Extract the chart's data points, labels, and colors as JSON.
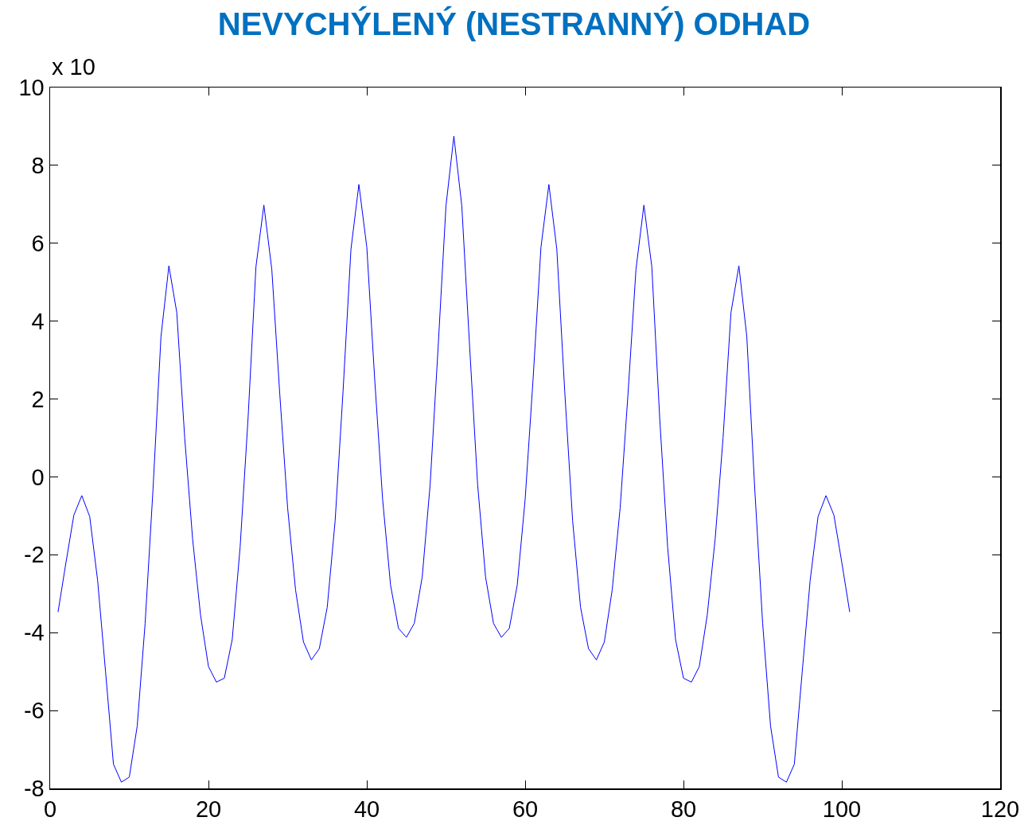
{
  "chart_data": {
    "type": "line",
    "title": "NEVYCHÝLENÝ (NESTRANNÝ) ODHAD",
    "annotations": [
      "x 10"
    ],
    "x": [
      1,
      2,
      3,
      4,
      5,
      6,
      7,
      8,
      9,
      10,
      11,
      12,
      13,
      14,
      15,
      16,
      17,
      18,
      19,
      20,
      21,
      22,
      23,
      24,
      25,
      26,
      27,
      28,
      29,
      30,
      31,
      32,
      33,
      34,
      35,
      36,
      37,
      38,
      39,
      40,
      41,
      42,
      43,
      44,
      45,
      46,
      47,
      48,
      49,
      50,
      51,
      52,
      53,
      54,
      55,
      56,
      57,
      58,
      59,
      60,
      61,
      62,
      63,
      64,
      65,
      66,
      67,
      68,
      69,
      70,
      71,
      72,
      73,
      74,
      75,
      76,
      77,
      78,
      79,
      80,
      81,
      82,
      83,
      84,
      85,
      86,
      87,
      88,
      89,
      90,
      91,
      92,
      93,
      94,
      95,
      96,
      97,
      98,
      99,
      100,
      101
    ],
    "series": [
      {
        "color": "#0000ff",
        "values": [
          -3.47,
          -2.2,
          -0.98,
          -0.48,
          -1.02,
          -2.66,
          -5.0,
          -7.38,
          -7.84,
          -7.71,
          -6.4,
          -3.76,
          -0.3,
          3.6,
          5.42,
          4.22,
          1.0,
          -1.6,
          -3.55,
          -4.87,
          -5.27,
          -5.17,
          -4.18,
          -1.8,
          1.5,
          5.4,
          6.98,
          5.33,
          2.15,
          -0.8,
          -2.9,
          -4.24,
          -4.7,
          -4.41,
          -3.35,
          -1.13,
          2.2,
          5.85,
          7.51,
          5.9,
          2.5,
          -0.58,
          -2.78,
          -3.89,
          -4.12,
          -3.76,
          -2.57,
          -0.2,
          3.3,
          6.96,
          8.75,
          6.96,
          3.3,
          -0.2,
          -2.57,
          -3.76,
          -4.12,
          -3.89,
          -2.78,
          -0.58,
          2.5,
          5.9,
          7.51,
          5.85,
          2.2,
          -1.13,
          -3.35,
          -4.41,
          -4.7,
          -4.24,
          -2.9,
          -0.8,
          2.15,
          5.33,
          6.98,
          5.4,
          1.5,
          -1.8,
          -4.18,
          -5.17,
          -5.27,
          -4.87,
          -3.55,
          -1.6,
          1.0,
          4.22,
          5.42,
          3.6,
          -0.3,
          -3.76,
          -6.4,
          -7.71,
          -7.84,
          -7.38,
          -5.0,
          -2.66,
          -1.02,
          -0.48,
          -0.98,
          -2.2,
          -3.47
        ]
      }
    ],
    "xlim": [
      0,
      120
    ],
    "xticks": [
      0,
      20,
      40,
      60,
      80,
      100,
      120
    ],
    "ylim": [
      -8,
      10
    ],
    "yticks": [
      -8,
      -6,
      -4,
      -2,
      0,
      2,
      4,
      6,
      8,
      10
    ],
    "grid": false,
    "marker": "none",
    "line_style": "solid"
  }
}
